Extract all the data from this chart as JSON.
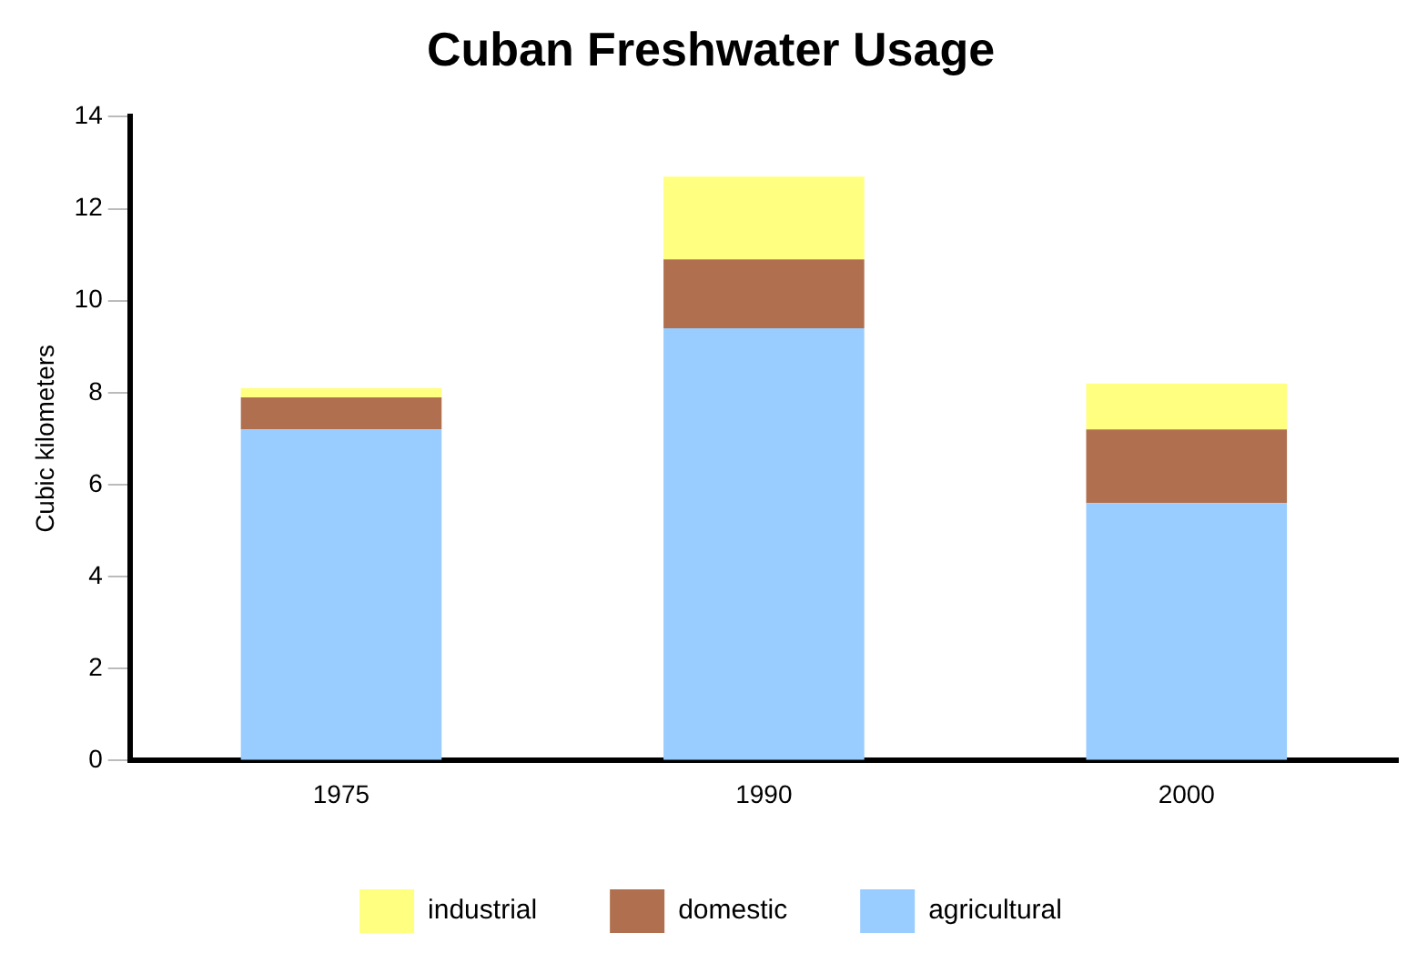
{
  "chart_data": {
    "type": "bar",
    "title": "Cuban Freshwater Usage",
    "ylabel": "Cubic kilometers",
    "categories": [
      "1975",
      "1990",
      "2000"
    ],
    "stacked": true,
    "series": [
      {
        "name": "agricultural",
        "color": "#99ccff",
        "values": [
          7.2,
          9.4,
          5.6
        ]
      },
      {
        "name": "domestic",
        "color": "#b07050",
        "values": [
          0.7,
          1.5,
          1.6
        ]
      },
      {
        "name": "industrial",
        "color": "#ffff80",
        "values": [
          0.2,
          1.8,
          1.0
        ]
      }
    ],
    "ylim": [
      0,
      14
    ],
    "yticks": [
      0,
      2,
      4,
      6,
      8,
      10,
      12,
      14
    ],
    "grid": false,
    "legend": "bottom"
  }
}
